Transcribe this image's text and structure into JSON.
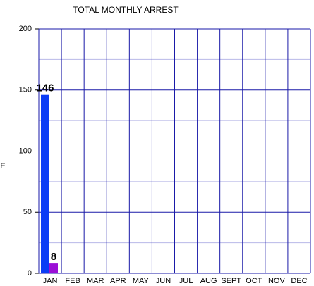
{
  "chart_data": {
    "type": "bar",
    "title": "TOTAL MONTHLY ARREST",
    "y_label": "E",
    "categories": [
      "JAN",
      "FEB",
      "MAR",
      "APR",
      "MAY",
      "JUN",
      "JUL",
      "AUG",
      "SEPT",
      "OCT",
      "NOV",
      "DEC"
    ],
    "series": [
      {
        "color": "#0a3cf5",
        "values": [
          146,
          null,
          null,
          null,
          null,
          null,
          null,
          null,
          null,
          null,
          null,
          null
        ]
      },
      {
        "color": "#9b0fd6",
        "values": [
          8,
          null,
          null,
          null,
          null,
          null,
          null,
          null,
          null,
          null,
          null,
          null
        ]
      }
    ],
    "ylim": [
      0,
      200
    ],
    "yticks": [
      0,
      50,
      100,
      150,
      200
    ],
    "minor_yticks": [
      25,
      75,
      125,
      175
    ],
    "grid": true
  }
}
